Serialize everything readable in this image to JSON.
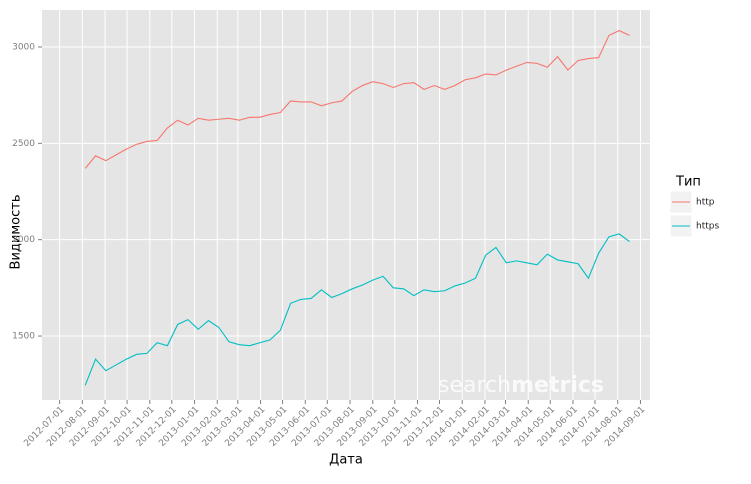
{
  "chart_data": {
    "type": "line",
    "x_label": "Дата",
    "y_label": "Видимость",
    "legend_title": "Тип",
    "watermark": [
      "search",
      "metrics"
    ],
    "x": [
      "2012-08-05",
      "2012-08-19",
      "2012-09-02",
      "2012-09-16",
      "2012-09-30",
      "2012-10-14",
      "2012-10-28",
      "2012-11-11",
      "2012-11-25",
      "2012-12-09",
      "2012-12-23",
      "2013-01-06",
      "2013-01-20",
      "2013-02-03",
      "2013-02-17",
      "2013-03-03",
      "2013-03-17",
      "2013-03-31",
      "2013-04-14",
      "2013-04-28",
      "2013-05-12",
      "2013-05-26",
      "2013-06-09",
      "2013-06-23",
      "2013-07-07",
      "2013-07-21",
      "2013-08-04",
      "2013-08-18",
      "2013-09-01",
      "2013-09-15",
      "2013-09-29",
      "2013-10-13",
      "2013-10-27",
      "2013-11-10",
      "2013-11-24",
      "2013-12-08",
      "2013-12-22",
      "2014-01-05",
      "2014-01-19",
      "2014-02-02",
      "2014-02-16",
      "2014-03-02",
      "2014-03-16",
      "2014-03-30",
      "2014-04-13",
      "2014-04-27",
      "2014-05-11",
      "2014-05-25",
      "2014-06-08",
      "2014-06-22",
      "2014-07-06",
      "2014-07-20",
      "2014-08-03",
      "2014-08-17"
    ],
    "series": [
      {
        "name": "http",
        "color": "#f8766d",
        "values": [
          2370,
          2435,
          2410,
          2440,
          2470,
          2495,
          2510,
          2515,
          2580,
          2620,
          2595,
          2630,
          2620,
          2625,
          2630,
          2620,
          2635,
          2635,
          2650,
          2660,
          2720,
          2715,
          2715,
          2695,
          2710,
          2720,
          2770,
          2800,
          2820,
          2810,
          2790,
          2810,
          2815,
          2780,
          2800,
          2780,
          2800,
          2830,
          2840,
          2860,
          2855,
          2880,
          2900,
          2920,
          2915,
          2895,
          2950,
          2880,
          2930,
          2940,
          2945,
          3060,
          3085,
          3060
        ]
      },
      {
        "name": "https",
        "color": "#00bfc4",
        "values": [
          1245,
          1380,
          1320,
          1350,
          1380,
          1405,
          1410,
          1465,
          1450,
          1560,
          1585,
          1535,
          1580,
          1545,
          1470,
          1455,
          1450,
          1465,
          1480,
          1530,
          1670,
          1690,
          1695,
          1740,
          1700,
          1720,
          1745,
          1765,
          1790,
          1810,
          1750,
          1745,
          1710,
          1740,
          1730,
          1735,
          1760,
          1775,
          1800,
          1920,
          1960,
          1880,
          1890,
          1880,
          1870,
          1925,
          1895,
          1885,
          1875,
          1800,
          1930,
          2015,
          2030,
          1990
        ]
      }
    ],
    "xlim": [
      "2012-06-07",
      "2014-09-14"
    ],
    "xticks": [
      "2012-07-01",
      "2012-08-01",
      "2012-09-01",
      "2012-10-01",
      "2012-11-01",
      "2012-12-01",
      "2013-01-01",
      "2013-02-01",
      "2013-03-01",
      "2013-04-01",
      "2013-05-01",
      "2013-06-01",
      "2013-07-01",
      "2013-08-01",
      "2013-09-01",
      "2013-10-01",
      "2013-11-01",
      "2013-12-01",
      "2014-01-01",
      "2014-02-01",
      "2014-03-01",
      "2014-04-01",
      "2014-05-01",
      "2014-06-01",
      "2014-07-01",
      "2014-08-01",
      "2014-09-01"
    ],
    "ylim": [
      1168,
      3192
    ],
    "yticks": [
      1500,
      2000,
      2500,
      3000
    ],
    "grid": true
  }
}
